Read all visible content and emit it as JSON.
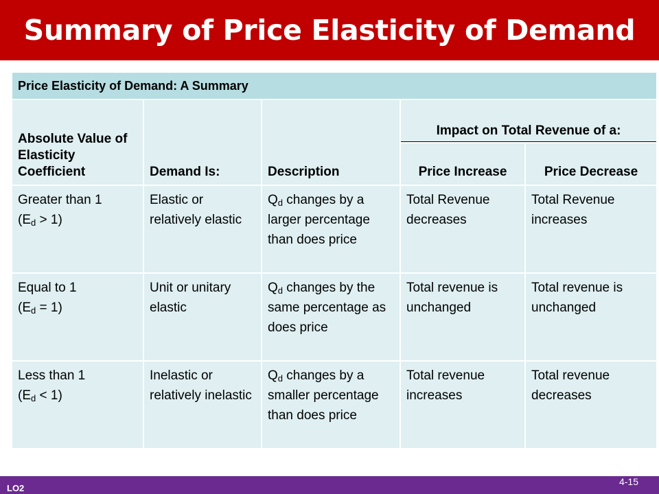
{
  "slide": {
    "title": "Summary of Price Elasticity of Demand",
    "footer_left": "LO2",
    "page_number": "4-15"
  },
  "table": {
    "caption": "Price Elasticity of Demand: A Summary",
    "headers": {
      "abs_value": "Absolute Value of Elasticity Coefficient",
      "demand_is": "Demand Is:",
      "description": "Description",
      "impact": "Impact on Total Revenue of a:",
      "price_increase": "Price Increase",
      "price_decrease": "Price Decrease"
    },
    "rows": [
      {
        "coef_line1": "Greater than 1",
        "coef_open": "(E",
        "coef_sub": "d",
        "coef_close": " > 1)",
        "demand": "Elastic or relatively elastic",
        "desc_q": "Q",
        "desc_sub": "d",
        "desc_rest": " changes by a larger percentage than does price",
        "price_increase": "Total Revenue decreases",
        "price_decrease": "Total Revenue increases"
      },
      {
        "coef_line1": "Equal to 1",
        "coef_open": "(E",
        "coef_sub": "d",
        "coef_close": " = 1)",
        "demand": "Unit or unitary elastic",
        "desc_q": "Q",
        "desc_sub": "d",
        "desc_rest": " changes by the same percentage as does price",
        "price_increase": "Total revenue is unchanged",
        "price_decrease": "Total revenue is unchanged"
      },
      {
        "coef_line1": "Less than 1",
        "coef_open": "(E",
        "coef_sub": "d",
        "coef_close": " < 1)",
        "demand": "Inelastic or relatively inelastic",
        "desc_q": "Q",
        "desc_sub": "d",
        "desc_rest": " changes by a smaller percentage than does price",
        "price_increase": "Total revenue increases",
        "price_decrease": "Total revenue decreases"
      }
    ]
  },
  "colors": {
    "title_bar": "#c00000",
    "caption_bg": "#b6dde2",
    "cell_bg": "#dfeff2",
    "footer_bar": "#6a2a8f"
  }
}
